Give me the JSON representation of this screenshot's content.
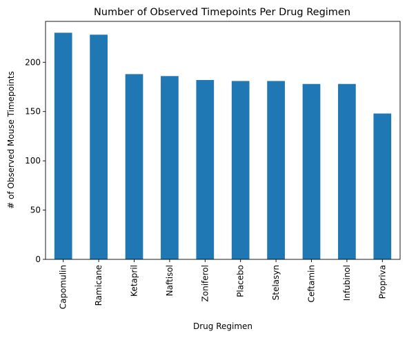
{
  "chart_data": {
    "type": "bar",
    "title": "Number of Observed Timepoints Per Drug Regimen",
    "xlabel": "Drug Regimen",
    "ylabel": "# of Observed Mouse Timepoints",
    "categories": [
      "Capomulin",
      "Ramicane",
      "Ketapril",
      "Naftisol",
      "Zoniferol",
      "Placebo",
      "Stelasyn",
      "Ceftamin",
      "Infubinol",
      "Propriva"
    ],
    "values": [
      230,
      228,
      188,
      186,
      182,
      181,
      181,
      178,
      178,
      148
    ],
    "ylim": [
      0,
      241.5
    ],
    "yticks": [
      0,
      50,
      100,
      150,
      200
    ],
    "bar_color": "#1f77b4",
    "grid": false,
    "legend": "none"
  }
}
